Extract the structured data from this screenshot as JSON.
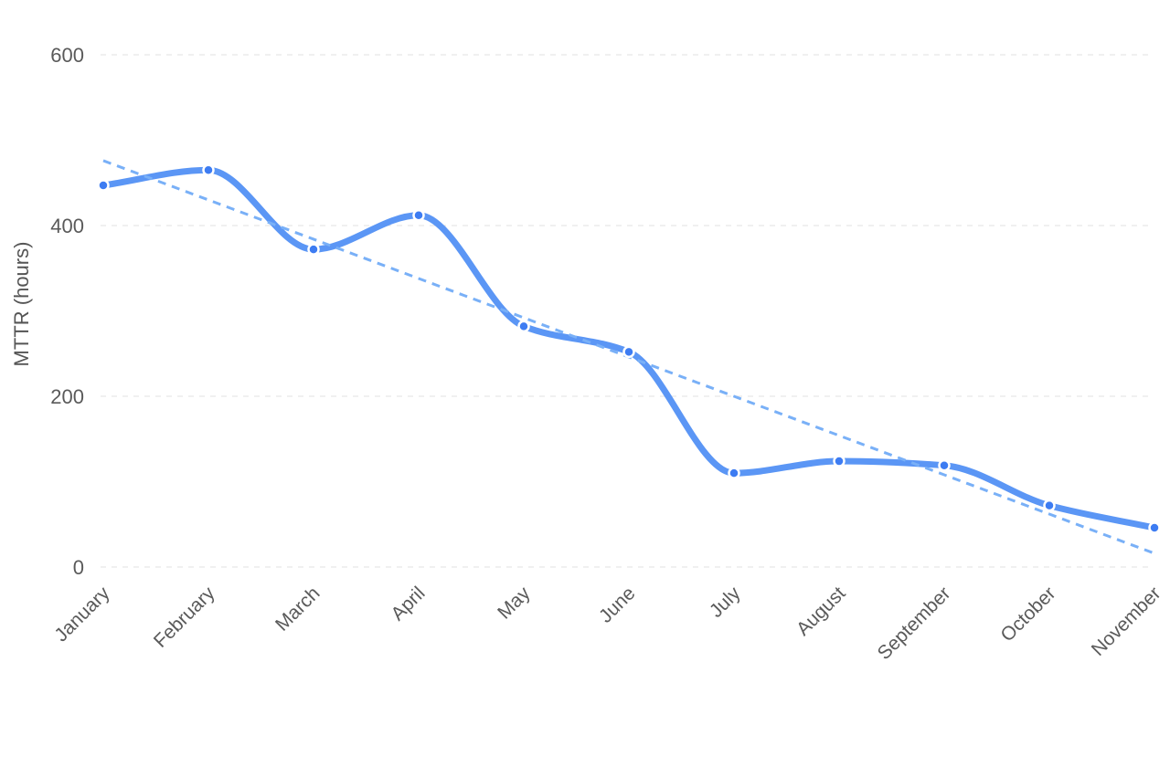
{
  "chart_data": {
    "type": "line",
    "title": "",
    "xlabel": "",
    "ylabel": "MTTR (hours)",
    "categories": [
      "January",
      "February",
      "March",
      "April",
      "May",
      "June",
      "July",
      "August",
      "September",
      "October",
      "November"
    ],
    "series": [
      {
        "values": [
          447,
          465,
          372,
          412,
          282,
          252,
          110,
          124,
          119,
          72,
          46
        ],
        "color": "#5b96f5",
        "style": "smooth-solid-with-markers"
      },
      {
        "values": [
          476,
          430,
          384,
          338,
          292,
          246,
          200,
          154,
          108,
          62,
          16
        ],
        "color": "#79b0f7",
        "style": "dashed-trend"
      }
    ],
    "ylim": [
      0,
      600
    ],
    "yticks": [
      0,
      200,
      400,
      600
    ],
    "grid": "horizontal-dashed",
    "legend": "none"
  }
}
